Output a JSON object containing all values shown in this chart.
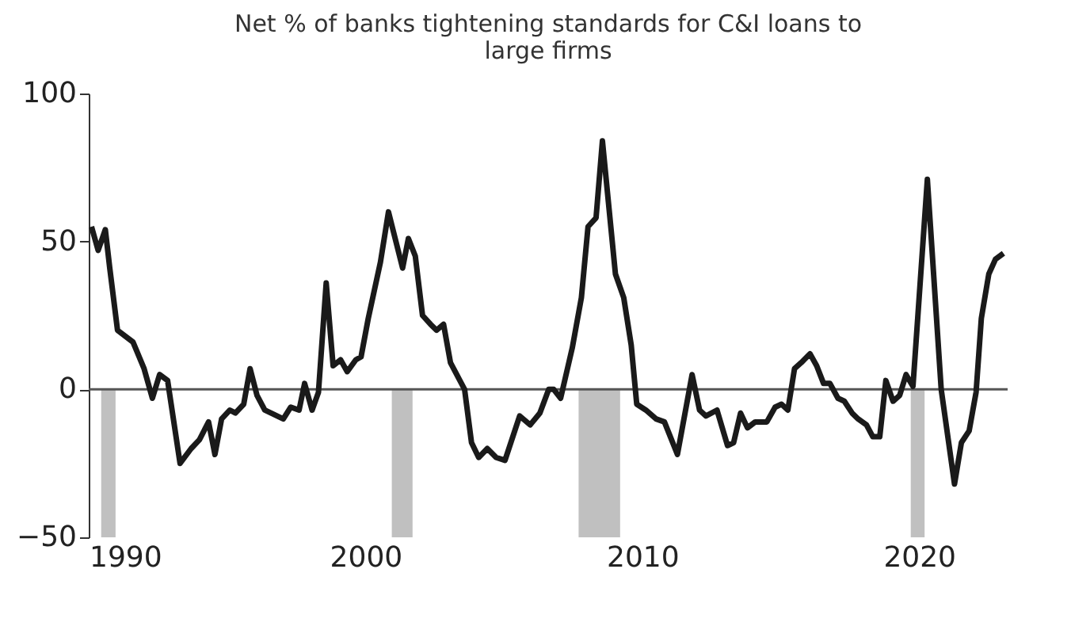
{
  "chart_data": {
    "type": "line",
    "title": "Net % of banks tightening standards for C&I loans to large firms",
    "x": [
      1990.1,
      1990.34,
      1990.6,
      1990.76,
      1991.04,
      1991.6,
      1992.0,
      1992.3,
      1992.56,
      1992.85,
      1993.3,
      1993.7,
      1994.0,
      1994.33,
      1994.56,
      1994.8,
      1995.1,
      1995.3,
      1995.6,
      1995.83,
      1996.08,
      1996.36,
      1997.03,
      1997.3,
      1997.6,
      1997.8,
      1998.07,
      1998.3,
      1998.58,
      1998.83,
      1999.1,
      1999.34,
      1999.65,
      1999.84,
      2000.1,
      2000.54,
      2000.83,
      2001.34,
      2001.55,
      2001.8,
      2002.06,
      2002.35,
      2002.57,
      2002.82,
      2003.07,
      2003.58,
      2003.83,
      2004.09,
      2004.4,
      2004.72,
      2005.04,
      2005.57,
      2005.95,
      2006.3,
      2006.62,
      2006.8,
      2007.05,
      2007.47,
      2007.8,
      2008.04,
      2008.33,
      2008.56,
      2008.8,
      2009.03,
      2009.33,
      2009.6,
      2009.8,
      2010.13,
      2010.5,
      2010.8,
      2011.27,
      2011.8,
      2012.07,
      2012.3,
      2012.7,
      2013.08,
      2013.3,
      2013.55,
      2013.8,
      2014.08,
      2014.5,
      2014.8,
      2015.03,
      2015.26,
      2015.5,
      2015.74,
      2016.06,
      2016.3,
      2016.55,
      2016.78,
      2017.07,
      2017.3,
      2017.58,
      2017.8,
      2018.1,
      2018.33,
      2018.58,
      2018.8,
      2019.06,
      2019.3,
      2019.53,
      2019.78,
      2020.3,
      2020.8,
      2021.28,
      2021.53,
      2021.81,
      2022.06,
      2022.25,
      2022.52,
      2022.76,
      2023.05
    ],
    "series": [
      {
        "color": "#1a1a1a",
        "values": [
          55,
          47,
          54,
          41,
          20,
          16,
          7,
          -3,
          5,
          3,
          -25,
          -20,
          -17,
          -11,
          -22,
          -10,
          -7,
          -8,
          -5,
          7,
          -2,
          -7,
          -10,
          -6,
          -7,
          2,
          -7,
          -1,
          36,
          8,
          10,
          6,
          10,
          11,
          24,
          43,
          60,
          41,
          51,
          45,
          25,
          22,
          20,
          22,
          9,
          0,
          -18,
          -23,
          -20,
          -23,
          -24,
          -9,
          -12,
          -8,
          0,
          0,
          -3,
          14,
          31,
          55,
          58,
          84,
          61,
          39,
          31,
          15,
          -5,
          -7,
          -10,
          -11,
          -22,
          5,
          -7,
          -9,
          -7,
          -19,
          -18,
          -8,
          -13,
          -11,
          -11,
          -6,
          -5,
          -7,
          7,
          9,
          12,
          8,
          2,
          2,
          -3,
          -4,
          -8,
          -10,
          -12,
          -16,
          -16,
          3,
          -4,
          -2,
          5,
          1,
          71,
          0,
          -32,
          -18,
          -14,
          -1,
          24,
          39,
          44,
          46
        ]
      }
    ],
    "xlim": [
      1990,
      2023.2
    ],
    "xticks": [
      1990,
      2000,
      2010,
      2020
    ],
    "ylim": [
      -50,
      100
    ],
    "yticks": [
      -50,
      0,
      50,
      100
    ],
    "ref_lines": [
      {
        "axis": "y",
        "value": 0,
        "color": "#555555"
      }
    ],
    "bands": [
      {
        "axis": "x",
        "from": 1990.45,
        "to": 1990.97,
        "color": "#c0c0c0"
      },
      {
        "axis": "x",
        "from": 2000.95,
        "to": 2001.7,
        "color": "#c0c0c0"
      },
      {
        "axis": "x",
        "from": 2007.7,
        "to": 2009.2,
        "color": "#c0c0c0"
      },
      {
        "axis": "x",
        "from": 2019.7,
        "to": 2020.2,
        "color": "#c0c0c0"
      }
    ],
    "grid": false,
    "line_style": "solid",
    "marker": "none"
  }
}
